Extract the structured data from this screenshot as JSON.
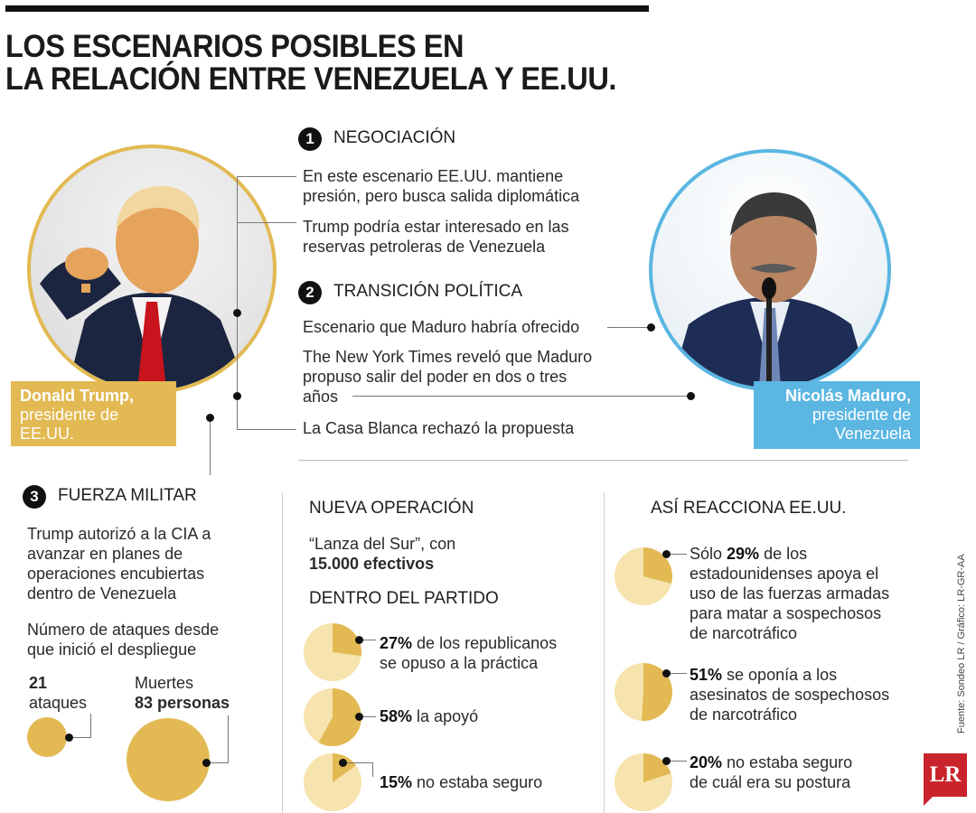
{
  "title": {
    "line1": "LOS ESCENARIOS POSIBLES EN",
    "line2": "LA RELACIÓN ENTRE VENEZUELA Y EE.UU."
  },
  "trump": {
    "name": "Donald Trump,",
    "role_line1": "presidente de",
    "role_line2": "EE.UU."
  },
  "maduro": {
    "name": "Nicolás Maduro,",
    "role_line1": "presidente de",
    "role_line2": "Venezuela"
  },
  "scenario1": {
    "number": "1",
    "title": "NEGOCIACIÓN",
    "point1_line1": "En este escenario EE.UU. mantiene",
    "point1_line2": "presión, pero busca salida diplomática",
    "point2_line1": "Trump podría estar interesado en las",
    "point2_line2": "reservas petroleras de Venezuela"
  },
  "scenario2": {
    "number": "2",
    "title": "TRANSICIÓN POLÍTICA",
    "point1": "Escenario que Maduro habría ofrecido",
    "point2_line1": "The New York Times reveló que Maduro",
    "point2_line2": "propuso salir del poder en dos o tres",
    "point2_line3": "años",
    "point3": "La Casa Blanca rechazó la propuesta"
  },
  "scenario3": {
    "number": "3",
    "title": "FUERZA MILITAR",
    "text_line1": "Trump autorizó a la CIA a",
    "text_line2": "avanzar en planes de",
    "text_line3": "operaciones encubiertas",
    "text_line4": "dentro de Venezuela",
    "attacks_intro_line1": "Número de ataques desde",
    "attacks_intro_line2": "que inició el despliegue",
    "attacks_value": "21",
    "attacks_label": "ataques",
    "deaths_label": "Muertes",
    "deaths_value": "83 personas"
  },
  "operation": {
    "title": "NUEVA OPERACIÓN",
    "name": "“Lanza del Sur”, con",
    "troops": "15.000 efectivos"
  },
  "party": {
    "title": "DENTRO DEL PARTIDO",
    "items": [
      {
        "value": 27,
        "pct": "27%",
        "text_line1": "de los republicanos",
        "text_line2": "se opuso a la práctica"
      },
      {
        "value": 58,
        "pct": "58%",
        "text_line1": "la apoyó",
        "text_line2": ""
      },
      {
        "value": 15,
        "pct": "15%",
        "text_line1": "no estaba seguro",
        "text_line2": ""
      }
    ]
  },
  "usa": {
    "title": "ASÍ REACCIONA EE.UU.",
    "items": [
      {
        "value": 29,
        "pre": "Sólo ",
        "pct": "29%",
        "text_line1": " de los",
        "text_line2": "estadounidenses apoya el",
        "text_line3": "uso de las fuerzas armadas",
        "text_line4": "para matar a sospechosos",
        "text_line5": "de narcotráfico"
      },
      {
        "value": 51,
        "pre": "",
        "pct": "51%",
        "text_line1": " se oponía a los",
        "text_line2": "asesinatos de sospechosos",
        "text_line3": "de narcotráfico",
        "text_line4": "",
        "text_line5": ""
      },
      {
        "value": 20,
        "pre": "",
        "pct": "20%",
        "text_line1": " no estaba seguro",
        "text_line2": "de cuál era su postura",
        "text_line3": "",
        "text_line4": "",
        "text_line5": ""
      }
    ]
  },
  "source": "Fuente: Sondeo LR / Gráfico: LR-GR-AA",
  "logo": "LR",
  "colors": {
    "gold": "#e2b953",
    "pale": "#f6e3ad",
    "blue": "#5bb6e2",
    "dark": "#111111"
  }
}
